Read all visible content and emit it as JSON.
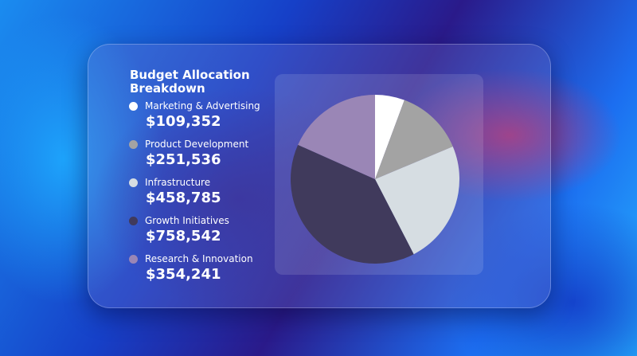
{
  "chart_data": {
    "type": "pie",
    "title": "Budget Allocation Breakdown",
    "categories": [
      "Marketing & Advertising",
      "Product Development",
      "Infrastructure",
      "Growth Initiatives",
      "Research & Innovation"
    ],
    "values": [
      109352,
      251536,
      458785,
      758542,
      354241
    ],
    "value_labels": [
      "$109,352",
      "$251,536",
      "$458,785",
      "$758,542",
      "$354,241"
    ],
    "colors": [
      "#ffffff",
      "#a3a3a3",
      "#d6dde2",
      "#403a5c",
      "#9a86b6"
    ]
  }
}
